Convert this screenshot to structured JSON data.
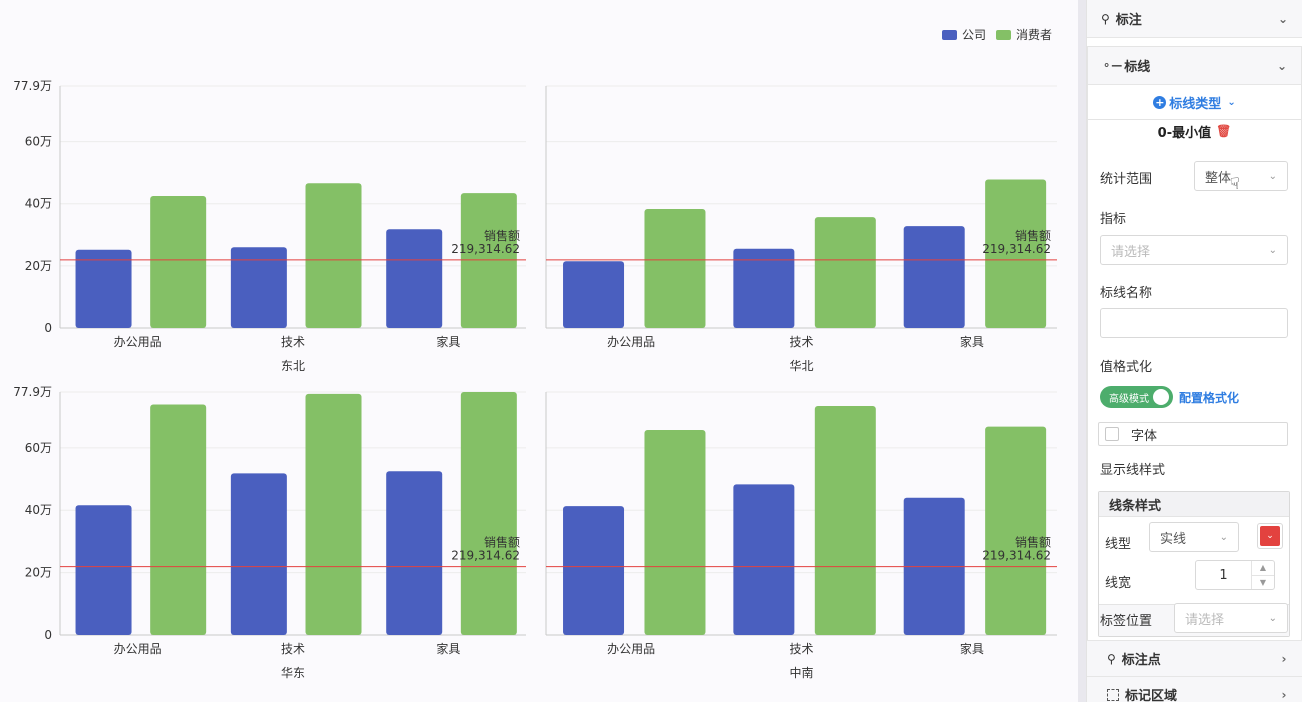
{
  "chart": {
    "legend": [
      {
        "label": "公司",
        "color": "#4a5fbf"
      },
      {
        "label": "消费者",
        "color": "#84c066"
      }
    ],
    "refline": {
      "label": "销售额",
      "value_text": "219,314.62",
      "color": "#e3423f"
    }
  },
  "chart_data": {
    "type": "bar",
    "categories": [
      "办公用品",
      "技术",
      "家具"
    ],
    "ylim": [
      0,
      779000
    ],
    "y_ticks": [
      0,
      200000,
      400000,
      600000,
      779000
    ],
    "y_tick_labels": [
      "0",
      "20万",
      "40万",
      "60万",
      "77.9万"
    ],
    "reference_line": {
      "name": "销售额",
      "value": 219314.62
    },
    "panels": [
      {
        "title": "东北",
        "series": [
          {
            "name": "公司",
            "values": [
              252000,
              260000,
              318000
            ]
          },
          {
            "name": "消费者",
            "values": [
              425000,
              466000,
              434000
            ]
          }
        ]
      },
      {
        "title": "华北",
        "series": [
          {
            "name": "公司",
            "values": [
              215000,
              255000,
              328000
            ]
          },
          {
            "name": "消费者",
            "values": [
              383000,
              357000,
              478000
            ]
          }
        ]
      },
      {
        "title": "华东",
        "series": [
          {
            "name": "公司",
            "values": [
              416000,
              518000,
              525000
            ]
          },
          {
            "name": "消费者",
            "values": [
              739000,
              773000,
              779000
            ]
          }
        ]
      },
      {
        "title": "中南",
        "series": [
          {
            "name": "公司",
            "values": [
              413000,
              483000,
              440000
            ]
          },
          {
            "name": "消费者",
            "values": [
              657000,
              734000,
              668000
            ]
          }
        ]
      }
    ]
  },
  "panel": {
    "annotation_label": "标注",
    "refline_section_label": "标线",
    "refline_type_label": "标线类型",
    "item_title": "0-最小值",
    "range_label": "统计范围",
    "range_value": "整体",
    "metric_label": "指标",
    "metric_placeholder": "请选择",
    "line_name_label": "标线名称",
    "line_name_value": "",
    "format_label": "值格式化",
    "advanced_mode": "高级模式",
    "config_format": "配置格式化",
    "font_label": "字体",
    "show_line_style": "显示线样式",
    "line_style_title": "线条样式",
    "line_type_label": "线型",
    "line_type_value": "实线",
    "line_width_label": "线宽",
    "line_width_value": "1",
    "label_pos_label": "标签位置",
    "label_pos_placeholder": "请选择",
    "point_label": "标注点",
    "region_label": "标记区域",
    "line_color": "#e3423f"
  }
}
